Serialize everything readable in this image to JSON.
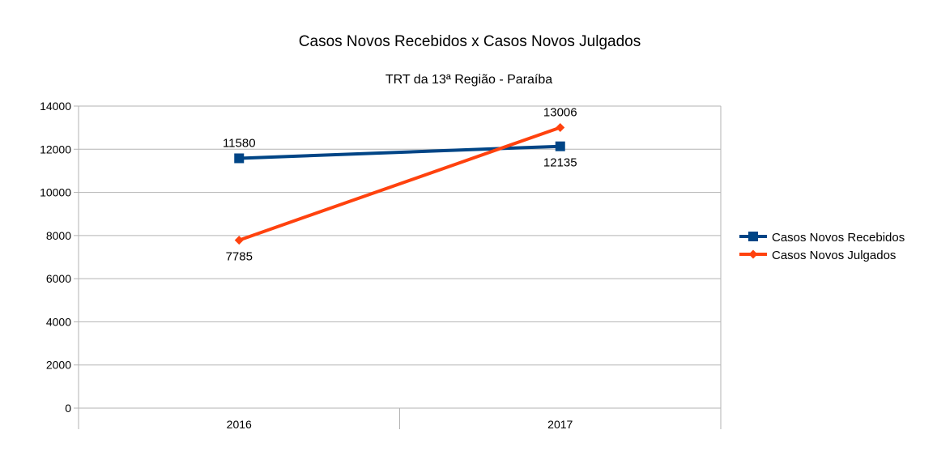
{
  "chart_data": {
    "type": "line",
    "title": "Casos Novos Recebidos x Casos Novos Julgados",
    "subtitle": "TRT da 13ª Região -  Paraíba",
    "xlabel": "",
    "ylabel": "",
    "categories": [
      "2016",
      "2017"
    ],
    "ylim": [
      0,
      14000
    ],
    "yticks": [
      0,
      2000,
      4000,
      6000,
      8000,
      10000,
      12000,
      14000
    ],
    "grid": true,
    "legend": "right",
    "series": [
      {
        "name": "Casos Novos Recebidos",
        "values": [
          11580,
          12135
        ],
        "color": "#004586",
        "marker": "square",
        "labels": [
          "11580",
          "12135"
        ]
      },
      {
        "name": "Casos Novos Julgados",
        "values": [
          7785,
          13006
        ],
        "color": "#ff420e",
        "marker": "diamond",
        "labels": [
          "7785",
          "13006"
        ]
      }
    ]
  }
}
